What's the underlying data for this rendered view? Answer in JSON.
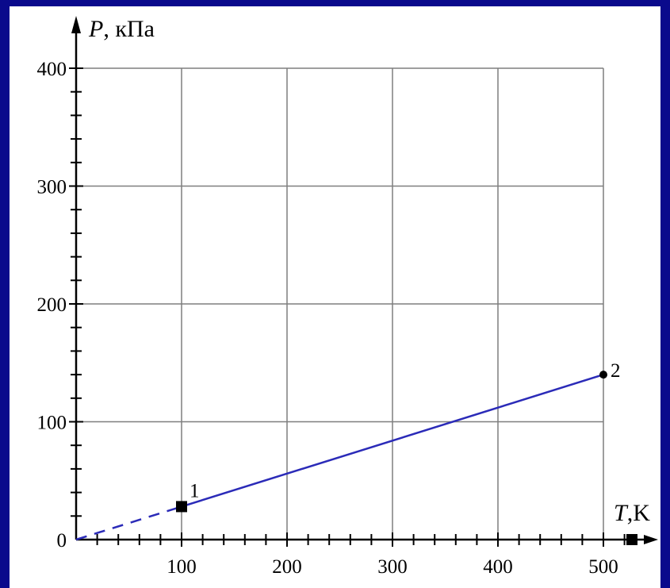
{
  "chart_data": {
    "type": "line",
    "xlabel_var": "T",
    "xlabel_unit": ",K",
    "ylabel_var": "P",
    "ylabel_unit": ", кПа",
    "xlim": [
      0,
      500
    ],
    "ylim": [
      0,
      400
    ],
    "x_ticks": [
      100,
      200,
      300,
      400,
      500
    ],
    "y_ticks": [
      0,
      100,
      200,
      300,
      400
    ],
    "grid": true,
    "colors": {
      "line": "#2b2bb8",
      "axis": "#000000",
      "grid": "#7f7f7f",
      "background": "#0a0a8c"
    },
    "extrapolation": {
      "style": "dashed",
      "from": [
        0,
        0
      ],
      "to": [
        100,
        28
      ]
    },
    "series": [
      {
        "points": [
          {
            "x": 100,
            "y": 28,
            "label": "1"
          },
          {
            "x": 500,
            "y": 140,
            "label": "2"
          }
        ]
      }
    ]
  }
}
